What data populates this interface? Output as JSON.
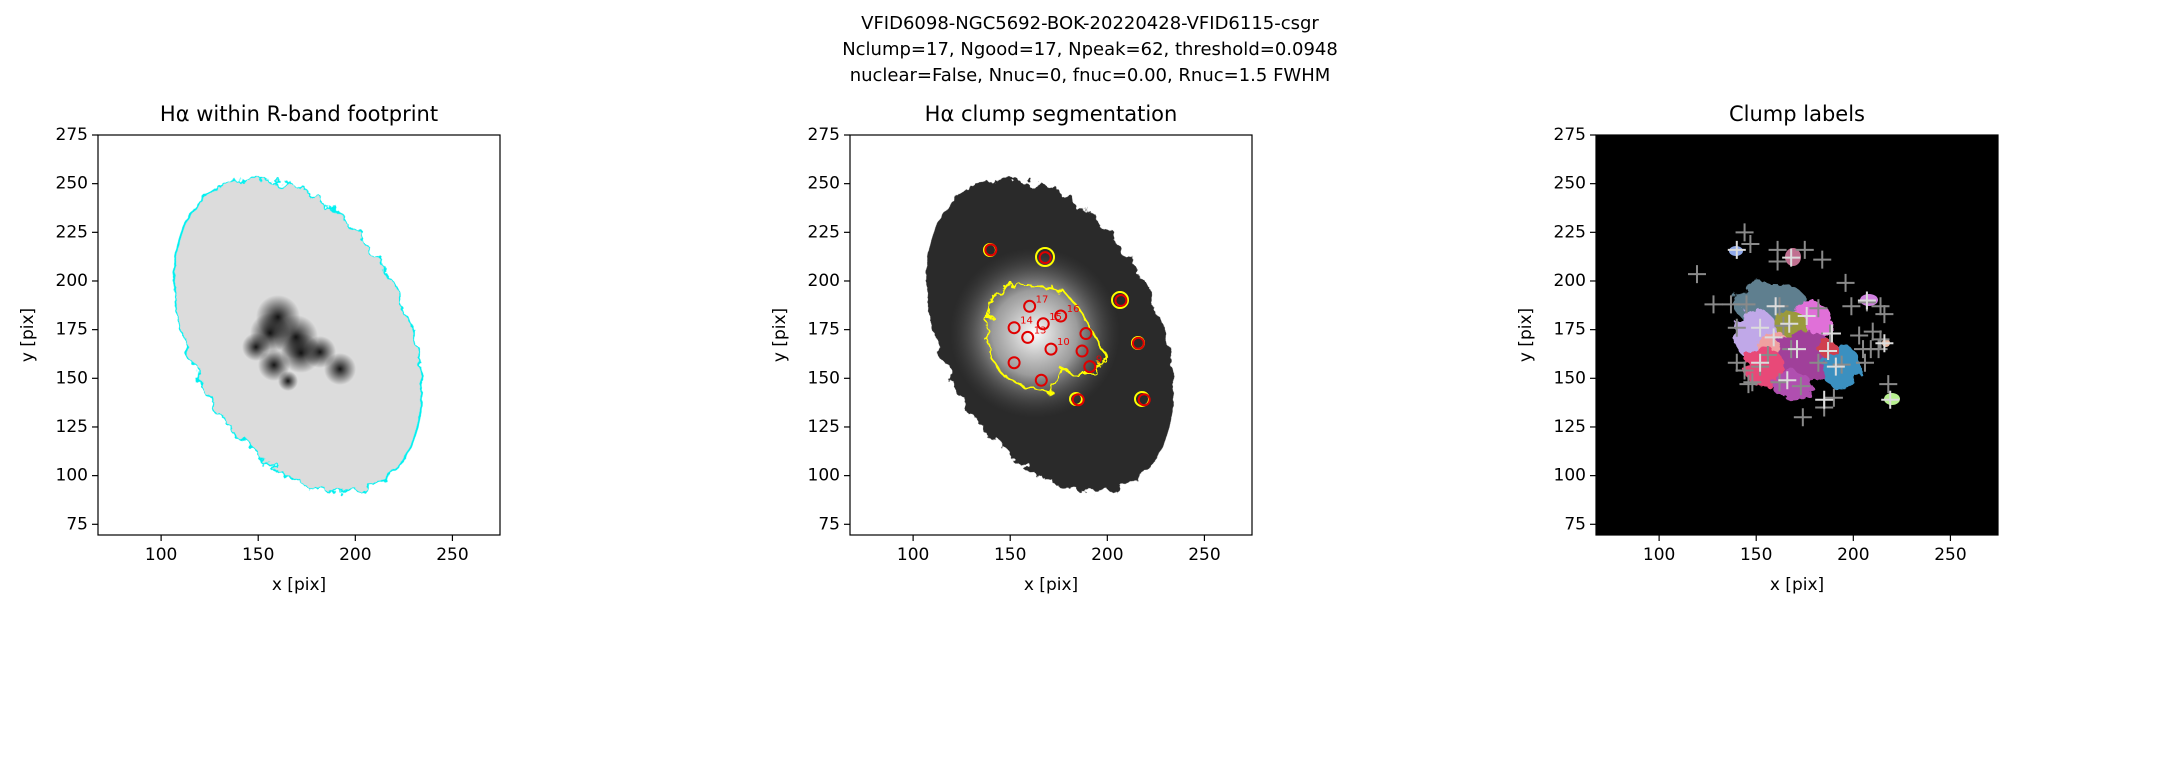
{
  "figure_title": [
    "VFID6098-NGC5692-BOK-20220428-VFID6115-csgr",
    "Nclump=17, Ngood=17, Npeak=62, threshold=0.0948",
    "nuclear=False, Nnuc=0, fnuc=0.00, Rnuc=1.5 FWHM"
  ],
  "chart_data": [
    {
      "type": "image",
      "title": "Hα within R-band footprint",
      "xlabel": "x [pix]",
      "ylabel": "y [pix]",
      "xlim": [
        67.5,
        274.5
      ],
      "ylim": [
        69.5,
        275
      ],
      "xticks": [
        100,
        150,
        200,
        250
      ],
      "yticks": [
        75,
        100,
        125,
        150,
        175,
        200,
        225,
        250,
        275
      ]
    },
    {
      "type": "image",
      "title": "Hα clump segmentation",
      "xlabel": "x [pix]",
      "ylabel": "y [pix]",
      "xlim": [
        67.5,
        274.5
      ],
      "ylim": [
        69.5,
        275
      ],
      "xticks": [
        100,
        150,
        200,
        250
      ],
      "yticks": [
        75,
        100,
        125,
        150,
        175,
        200,
        225,
        250,
        275
      ],
      "marker_color": "#e00000",
      "clumps": {
        "x": [
          140,
          168,
          207,
          160,
          176,
          152,
          167,
          189,
          159,
          171,
          187,
          216,
          152,
          191,
          166,
          185,
          219
        ],
        "y": [
          216,
          212,
          190,
          187,
          182,
          176,
          178,
          173,
          171,
          165,
          164,
          168,
          158,
          156,
          149,
          139,
          139
        ],
        "labels": [
          null,
          null,
          null,
          "17",
          "16",
          "14",
          "15",
          null,
          "13",
          "10",
          null,
          null,
          null,
          "9",
          null,
          null,
          null
        ]
      }
    },
    {
      "type": "image",
      "title": "Clump labels",
      "xlabel": "x [pix]",
      "ylabel": "y [pix]",
      "xlim": [
        67.5,
        274.5
      ],
      "ylim": [
        69.5,
        275
      ],
      "xticks": [
        100,
        150,
        200,
        250
      ],
      "yticks": [
        75,
        100,
        125,
        150,
        175,
        200,
        225,
        250,
        275
      ],
      "peak_color": "#8a8a8a",
      "peaks": {
        "x": [
          119.5,
          144,
          147,
          161,
          175,
          184,
          161,
          128,
          137,
          145,
          162,
          182,
          196,
          199,
          207,
          214,
          216,
          140,
          164,
          188,
          203,
          210,
          214,
          205,
          209,
          213,
          156,
          168,
          182,
          194,
          140,
          144,
          152,
          162,
          173,
          148,
          190,
          218,
          185,
          174,
          206,
          146
        ],
        "y": [
          203.5,
          225,
          219,
          216,
          216,
          211,
          210,
          188,
          188,
          188,
          187,
          186,
          199,
          187,
          189,
          187,
          183,
          176,
          177,
          173,
          172,
          174,
          170,
          165,
          165,
          165,
          162,
          165,
          158,
          157,
          158,
          154,
          156,
          148,
          146,
          148,
          140,
          147,
          135,
          130,
          158,
          147
        ]
      }
    }
  ]
}
